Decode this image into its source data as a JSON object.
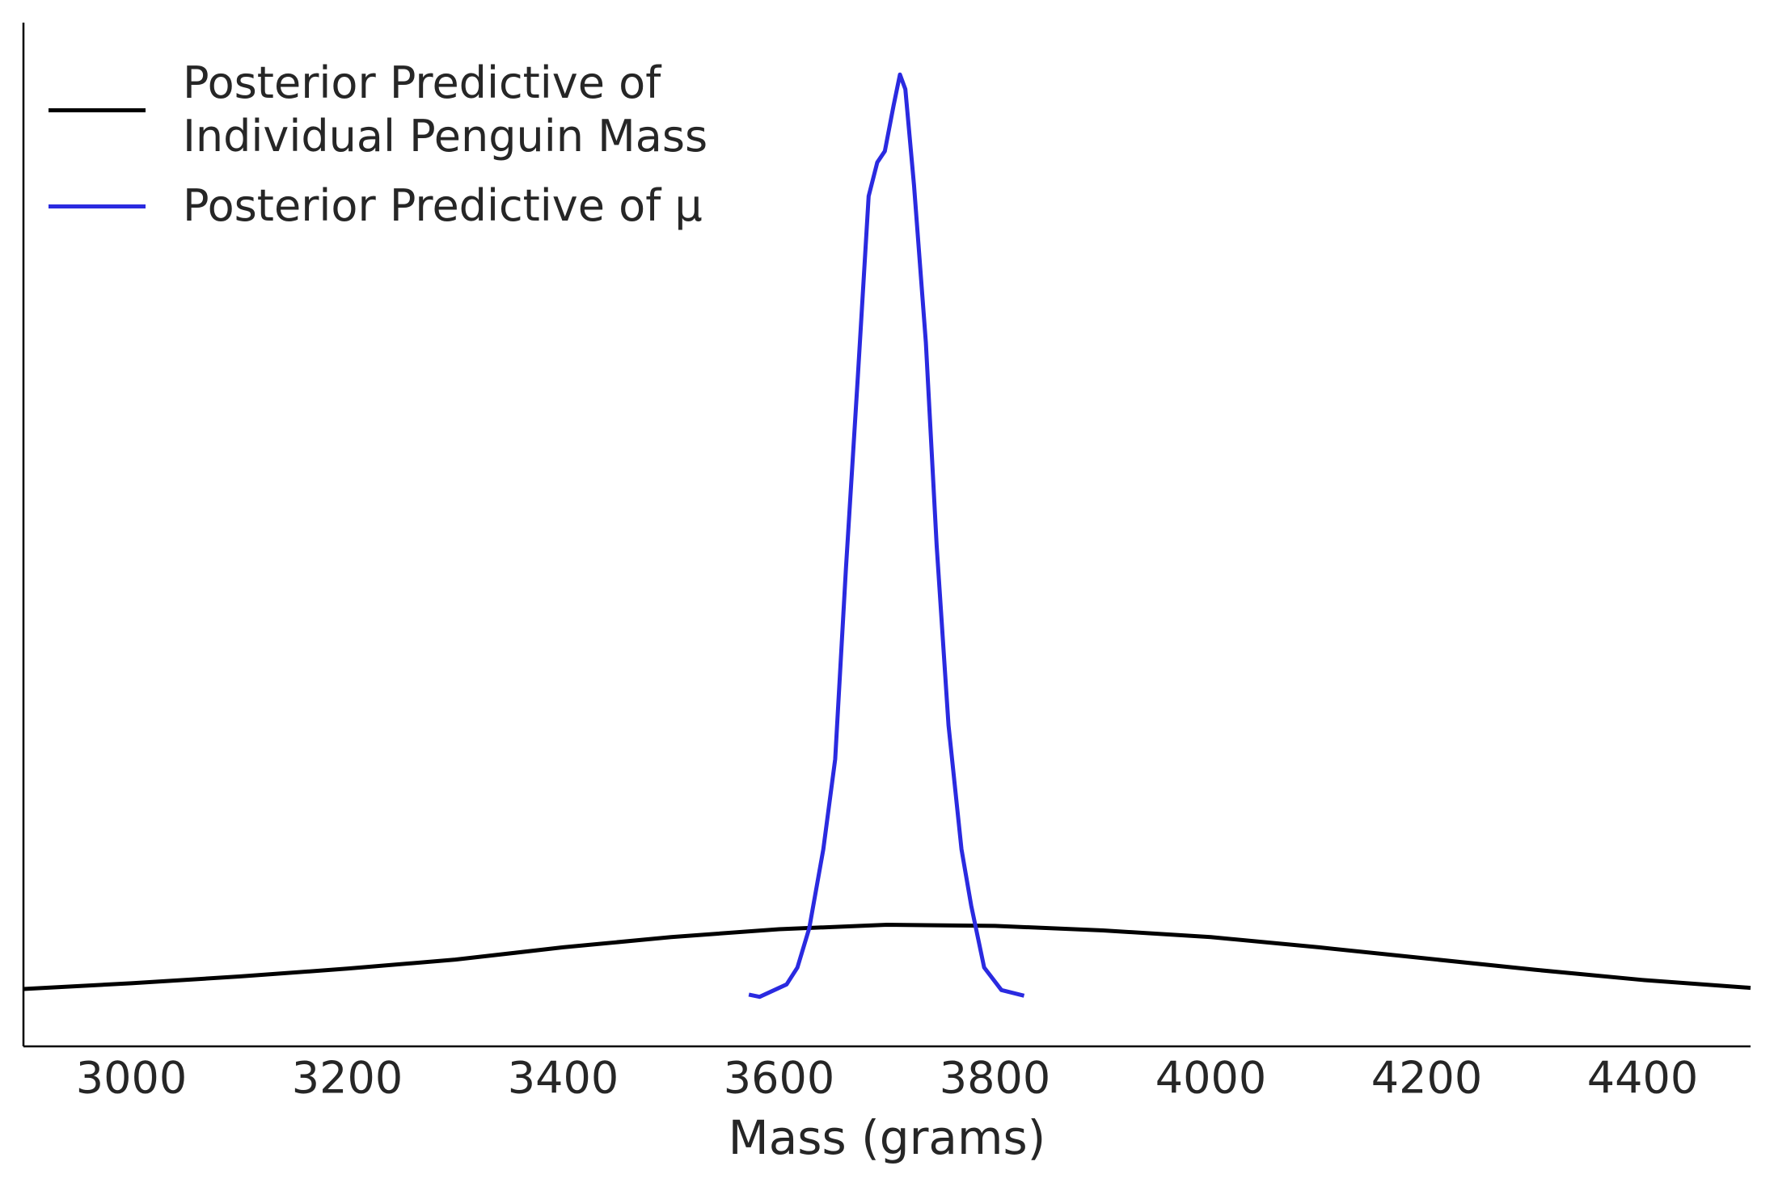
{
  "chart_data": {
    "type": "line",
    "xlabel": "Mass (grams)",
    "xlim": [
      2900,
      4500
    ],
    "xticks": [
      3000,
      3200,
      3400,
      3600,
      3800,
      4000,
      4200,
      4400
    ],
    "ylim": [
      0,
      0.0074
    ],
    "legend": "upper left",
    "series": [
      {
        "name": "Posterior Predictive of\nIndividual Penguin Mass",
        "color": "#000000",
        "x": [
          2900,
          3000,
          3100,
          3200,
          3300,
          3400,
          3500,
          3600,
          3700,
          3800,
          3900,
          4000,
          4100,
          4200,
          4300,
          4400,
          4500
        ],
        "values": [
          0.000415,
          0.000456,
          0.000505,
          0.000562,
          0.000627,
          0.000716,
          0.00079,
          0.000847,
          0.000879,
          0.000871,
          0.000838,
          0.00079,
          0.000716,
          0.000635,
          0.000554,
          0.00048,
          0.000423
        ]
      },
      {
        "name": "Posterior Predictive of μ",
        "color": "#2a2ae0",
        "x": [
          3572,
          3582,
          3607,
          3617,
          3628,
          3641,
          3652,
          3662,
          3673,
          3683,
          3691,
          3698,
          3706,
          3712,
          3717,
          3725,
          3736,
          3746,
          3757,
          3769,
          3778,
          3790,
          3806,
          3827
        ],
        "values": [
          0.000374,
          0.000358,
          0.000448,
          0.00057,
          0.000855,
          0.001425,
          0.002076,
          0.00346,
          0.004843,
          0.006146,
          0.00639,
          0.006471,
          0.006797,
          0.007025,
          0.006919,
          0.006227,
          0.005088,
          0.003622,
          0.00232,
          0.001425,
          0.001018,
          0.00057,
          0.000407,
          0.000366
        ]
      }
    ]
  }
}
